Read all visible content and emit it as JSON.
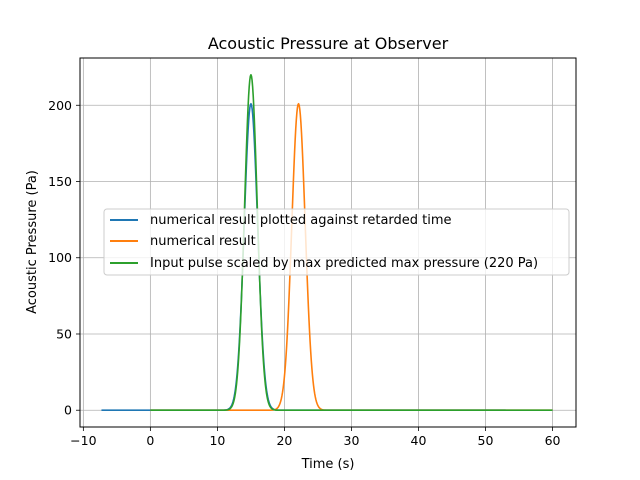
{
  "chart_data": {
    "type": "line",
    "title": "Acoustic Pressure at Observer",
    "xlabel": "Time (s)",
    "ylabel": "Acoustic Pressure (Pa)",
    "xlim": [
      -10.5,
      63.5
    ],
    "ylim": [
      -11,
      231
    ],
    "xticks": [
      -10,
      0,
      10,
      20,
      30,
      40,
      50,
      60
    ],
    "xtick_labels": [
      "−10",
      "0",
      "10",
      "20",
      "30",
      "40",
      "50",
      "60"
    ],
    "yticks": [
      0,
      50,
      100,
      150,
      200
    ],
    "ytick_labels": [
      "0",
      "50",
      "100",
      "150",
      "200"
    ],
    "grid": true,
    "legend_position": "center-left",
    "series": [
      {
        "name": "numerical result plotted against retarded time",
        "color": "#1f77b4",
        "x_start": -7.3,
        "x_end": 53.0,
        "peak_center": 15.0,
        "peak_height": 201,
        "peak_sigma": 1.0
      },
      {
        "name": "numerical result",
        "color": "#ff7f0e",
        "x_start": 0,
        "x_end": 60,
        "peak_center": 22.1,
        "peak_height": 201,
        "peak_sigma": 1.0
      },
      {
        "name": "Input pulse scaled by max predicted max pressure (220 Pa)",
        "color": "#2ca02c",
        "x_start": 0,
        "x_end": 60,
        "peak_center": 15.0,
        "peak_height": 220,
        "peak_sigma": 0.95
      }
    ]
  }
}
